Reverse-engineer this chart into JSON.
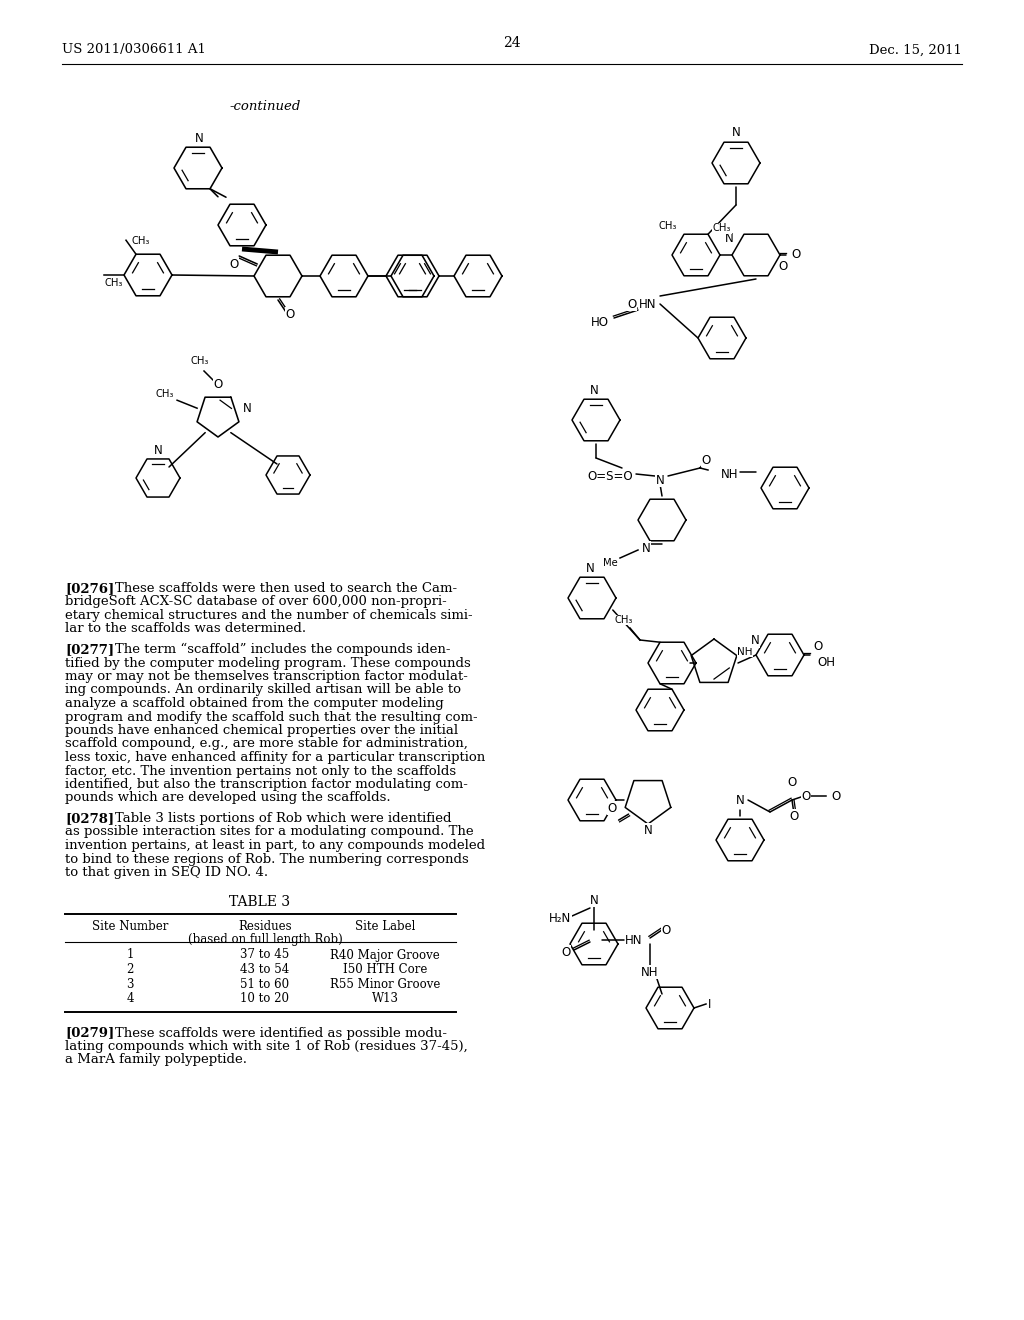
{
  "page_number": "24",
  "patent_number": "US 2011/0306611 A1",
  "patent_date": "Dec. 15, 2011",
  "continued_label": "-continued",
  "para_276_bold": "[0276]",
  "para_276_lines": [
    "These scaffolds were then used to search the Cam-",
    "bridgeSoft ACX-SC database of over 600,000 non-propri-",
    "etary chemical structures and the number of chemicals simi-",
    "lar to the scaffolds was determined."
  ],
  "para_277_bold": "[0277]",
  "para_277_lines": [
    "The term “scaffold” includes the compounds iden-",
    "tified by the computer modeling program. These compounds",
    "may or may not be themselves transcription factor modulat-",
    "ing compounds. An ordinarily skilled artisan will be able to",
    "analyze a scaffold obtained from the computer modeling",
    "program and modify the scaffold such that the resulting com-",
    "pounds have enhanced chemical properties over the initial",
    "scaffold compound, e.g., are more stable for administration,",
    "less toxic, have enhanced affinity for a particular transcription",
    "factor, etc. The invention pertains not only to the scaffolds",
    "identified, but also the transcription factor modulating com-",
    "pounds which are developed using the scaffolds."
  ],
  "para_278_bold": "[0278]",
  "para_278_lines": [
    "Table 3 lists portions of Rob which were identified",
    "as possible interaction sites for a modulating compound. The",
    "invention pertains, at least in part, to any compounds modeled",
    "to bind to these regions of Rob. The numbering corresponds",
    "to that given in SEQ ID NO. 4."
  ],
  "table_title": "TABLE 3",
  "table_rows": [
    [
      "1",
      "37 to 45",
      "R40 Major Groove"
    ],
    [
      "2",
      "43 to 54",
      "I50 HTH Core"
    ],
    [
      "3",
      "51 to 60",
      "R55 Minor Groove"
    ],
    [
      "4",
      "10 to 20",
      "W13"
    ]
  ],
  "para_279_bold": "[0279]",
  "para_279_lines": [
    "These scaffolds were identified as possible modu-",
    "lating compounds which with site 1 of Rob (residues 37-45),",
    "a MarA family polypeptide."
  ],
  "bg_color": "#ffffff",
  "text_color": "#000000"
}
